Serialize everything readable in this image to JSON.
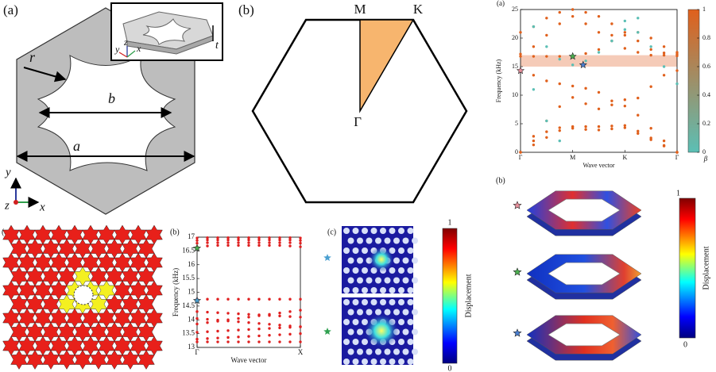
{
  "panel_unit_cell": {
    "label": "(a)",
    "dims": [
      "r",
      "b",
      "a",
      "t"
    ],
    "axes": [
      "y",
      "z",
      "x"
    ],
    "inset_axes": [
      "y",
      "z",
      "x"
    ]
  },
  "panel_brillouin": {
    "label": "(b)",
    "points": [
      "M",
      "K",
      "Γ"
    ]
  },
  "chart_data": [
    {
      "type": "scatter",
      "label": "(a)",
      "ylabel": "Frequency (kHz)",
      "xlabel": "Wave vector",
      "xlim": [
        0,
        3
      ],
      "xticks": [
        {
          "value": 0,
          "label": "Γ"
        },
        {
          "value": 1,
          "label": "M"
        },
        {
          "value": 2,
          "label": "K"
        },
        {
          "value": 3,
          "label": "Γ"
        }
      ],
      "ylim": [
        0,
        25
      ],
      "yticks": [
        0,
        5,
        10,
        15,
        20,
        25
      ],
      "band_gap": [
        15,
        17
      ],
      "band_gap_color": "#f5cbb8",
      "x": [
        0,
        0.25,
        0.5,
        0.75,
        1,
        1.25,
        1.5,
        1.75,
        2,
        2.25,
        2.5,
        2.75,
        3
      ],
      "series": [
        {
          "color": "#e0601c",
          "values": [
            0,
            1.3,
            2.6,
            3.8,
            4.5,
            4.5,
            4.5,
            4.6,
            4.7,
            3.7,
            2.5,
            1.2,
            0
          ]
        },
        {
          "color": "#e0601c",
          "values": [
            0,
            2,
            3.6,
            4.3,
            4.2,
            4,
            3.9,
            4.1,
            4.3,
            3.3,
            2.2,
            1.1,
            0
          ]
        },
        {
          "color": "#e0601c",
          "values": [
            0,
            2.8,
            5.5,
            8,
            9.6,
            8.5,
            7.6,
            8.3,
            9.2,
            6.5,
            4.2,
            2,
            0
          ]
        },
        {
          "color": "#e0601c",
          "values": [
            14.3,
            13.5,
            12.5,
            12,
            11.6,
            11.2,
            10.5,
            9,
            8.1,
            9.5,
            11.5,
            13.5,
            14.3
          ]
        },
        {
          "color": "#e0601c",
          "values": [
            16.8,
            16.8,
            16.8,
            16.8,
            16.8,
            17.3,
            18,
            19.5,
            18.2,
            17.5,
            17,
            17,
            16.9
          ]
        },
        {
          "color": "#e0601c",
          "values": [
            17.2,
            18.5,
            20.5,
            22.5,
            23.8,
            22.5,
            21,
            20.5,
            21,
            19.5,
            18,
            17.4,
            17.2
          ]
        },
        {
          "color": "#e0601c",
          "values": [
            21,
            22,
            23.5,
            24.5,
            25,
            24.5,
            23.8,
            22.5,
            20.5,
            21,
            20,
            18.5,
            17.5
          ]
        },
        {
          "color": "#5bbfb5",
          "values": [
            null,
            22,
            18.5,
            16.3,
            15.3,
            16,
            17.5,
            19.5,
            21.5,
            23.5,
            null,
            null,
            null
          ]
        },
        {
          "color": "#5bbfb5",
          "values": [
            null,
            null,
            null,
            null,
            null,
            null,
            null,
            null,
            23,
            21,
            18.5,
            15,
            12
          ]
        },
        {
          "color": "#5bbfb5",
          "values": [
            null,
            11,
            5.5,
            2,
            null,
            null,
            null,
            null,
            null,
            null,
            null,
            null,
            null
          ]
        }
      ],
      "markers": [
        {
          "x": 0,
          "value": 14.3,
          "color": "#e8909c"
        },
        {
          "x": 1,
          "value": 16.8,
          "color": "#4caf50"
        },
        {
          "x": 1.2,
          "value": 15.3,
          "color": "#4a7fd0"
        }
      ],
      "colorbar": {
        "title": "β",
        "lim": [
          0,
          1
        ],
        "ticks": [
          0,
          0.2,
          0.4,
          0.6,
          0.8,
          1
        ],
        "colors": [
          "#5bbfb5",
          "#e0601c"
        ]
      }
    },
    {
      "type": "scatter",
      "label": "(b)",
      "ylabel": "Frequency (kHz)",
      "xlabel": "Wave vector",
      "xlim": [
        0,
        1
      ],
      "xticks": [
        {
          "value": 0,
          "label": "Γ"
        },
        {
          "value": 1,
          "label": "X"
        }
      ],
      "ylim": [
        13,
        17
      ],
      "yticks": [
        13,
        13.5,
        14,
        14.5,
        15,
        15.5,
        16,
        16.5,
        17
      ],
      "x": [
        0,
        0.1,
        0.2,
        0.3,
        0.4,
        0.5,
        0.6,
        0.7,
        0.8,
        0.9,
        1
      ],
      "series": [
        {
          "color": "#e02020",
          "values": [
            14.75,
            14.75,
            14.75,
            14.75,
            14.75,
            14.75,
            14.75,
            14.75,
            14.75,
            14.75,
            14.75
          ]
        },
        {
          "color": "#e02020",
          "values": [
            14.3,
            14.28,
            14.26,
            14.24,
            14.22,
            14.2,
            14.18,
            14.16,
            14.14,
            14.12,
            14.1
          ]
        },
        {
          "color": "#e02020",
          "values": [
            14.05,
            14.02,
            13.99,
            13.96,
            13.93,
            13.9,
            13.87,
            13.84,
            13.81,
            13.78,
            13.75
          ]
        },
        {
          "color": "#e02020",
          "values": [
            13.85,
            13.9,
            13.95,
            14,
            14.05,
            14.1,
            14.15,
            14.2,
            14.25,
            14.3,
            14.35
          ]
        },
        {
          "color": "#e02020",
          "values": [
            13.55,
            13.57,
            13.59,
            13.61,
            13.63,
            13.65,
            13.67,
            13.69,
            13.71,
            13.73,
            13.75
          ]
        },
        {
          "color": "#e02020",
          "values": [
            13.3,
            13.32,
            13.34,
            13.36,
            13.38,
            13.4,
            13.42,
            13.44,
            13.46,
            13.48,
            13.5
          ]
        },
        {
          "color": "#e02020",
          "values": [
            13.2,
            13.2,
            13.2,
            13.2,
            13.2,
            13.2,
            13.2,
            13.2,
            13.2,
            13.2,
            13.2
          ]
        },
        {
          "color": "#e02020",
          "values": [
            16.65,
            16.68,
            16.7,
            16.7,
            16.7,
            16.7,
            16.7,
            16.7,
            16.7,
            16.68,
            16.65
          ]
        },
        {
          "color": "#e02020",
          "values": [
            16.78,
            16.8,
            16.8,
            16.8,
            16.8,
            16.8,
            16.8,
            16.8,
            16.8,
            16.8,
            16.78
          ]
        },
        {
          "color": "#e02020",
          "values": [
            16.88,
            16.9,
            16.9,
            16.9,
            16.9,
            16.9,
            16.9,
            16.9,
            16.9,
            16.9,
            16.88
          ]
        },
        {
          "color": "#e02020",
          "values": [
            16.97,
            16.98,
            16.98,
            16.98,
            16.98,
            16.98,
            16.98,
            16.98,
            16.98,
            16.98,
            16.97
          ]
        }
      ],
      "markers": [
        {
          "x": 0,
          "value": 16.6,
          "color": "#4caf50"
        },
        {
          "x": 0,
          "value": 14.7,
          "color": "#4a9fd0"
        }
      ]
    }
  ],
  "panel_lattice": {
    "label": "(a)"
  },
  "panel_fields": {
    "label": "(c)",
    "colorbar": {
      "max": "1",
      "min": "0",
      "title": "Displacement"
    }
  },
  "panel_modes": {
    "label": "(b)",
    "colorbar": {
      "max": "1",
      "min": "0",
      "title": "Displacement"
    }
  }
}
